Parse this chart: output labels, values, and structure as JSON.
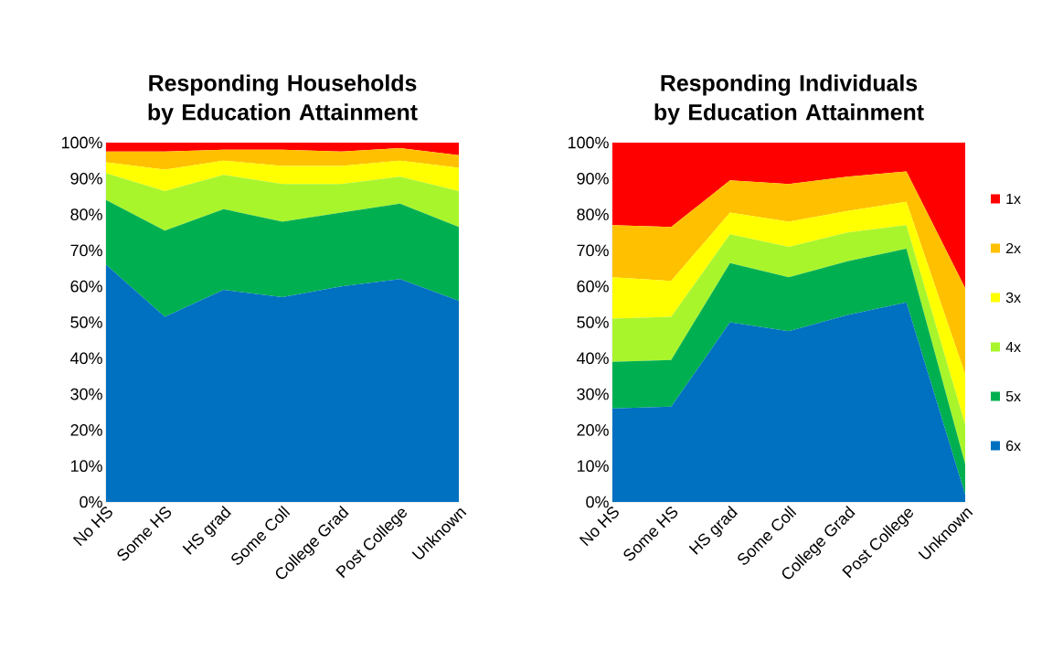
{
  "chart_data": [
    {
      "type": "area",
      "title": "Responding Households by Education Attainment",
      "stacked": true,
      "legend": false,
      "categories": [
        "No HS",
        "Some HS",
        "HS grad",
        "Some Coll",
        "College Grad",
        "Post College",
        "Unknown"
      ],
      "ylim": [
        0,
        100
      ],
      "yticks": [
        {
          "value": 0,
          "label": "0%"
        },
        {
          "value": 10,
          "label": "10%"
        },
        {
          "value": 20,
          "label": "20%"
        },
        {
          "value": 30,
          "label": "30%"
        },
        {
          "value": 40,
          "label": "40%"
        },
        {
          "value": 50,
          "label": "50%"
        },
        {
          "value": 60,
          "label": "60%"
        },
        {
          "value": 70,
          "label": "70%"
        },
        {
          "value": 80,
          "label": "80%"
        },
        {
          "value": 90,
          "label": "90%"
        },
        {
          "value": 100,
          "label": "100%"
        }
      ],
      "series": [
        {
          "color": "#0070c0",
          "values": [
            66,
            51.5,
            59,
            57,
            60,
            62,
            56
          ]
        },
        {
          "color": "#00b050",
          "values": [
            18,
            24,
            22.5,
            21,
            20.5,
            21,
            20.5
          ]
        },
        {
          "color": "#a9f52c",
          "values": [
            7.5,
            11,
            9.5,
            10.5,
            8,
            7.5,
            10
          ]
        },
        {
          "color": "#ffff00",
          "values": [
            3,
            6,
            4,
            5,
            5,
            4.5,
            6.5
          ]
        },
        {
          "color": "#ffc000",
          "values": [
            3,
            5,
            3,
            4.5,
            4,
            3.5,
            3.5
          ]
        },
        {
          "color": "#ff0000",
          "values": [
            2.5,
            2.5,
            2,
            2,
            2.5,
            1.5,
            3.5
          ]
        }
      ]
    },
    {
      "type": "area",
      "title": "Responding Individuals by Education Attainment",
      "stacked": true,
      "legend": "right",
      "categories": [
        "No HS",
        "Some HS",
        "HS grad",
        "Some Coll",
        "College Grad",
        "Post College",
        "Unknown"
      ],
      "ylim": [
        0,
        100
      ],
      "yticks": [
        {
          "value": 0,
          "label": "0%"
        },
        {
          "value": 10,
          "label": "10%"
        },
        {
          "value": 20,
          "label": "20%"
        },
        {
          "value": 30,
          "label": "30%"
        },
        {
          "value": 40,
          "label": "40%"
        },
        {
          "value": 50,
          "label": "50%"
        },
        {
          "value": 60,
          "label": "60%"
        },
        {
          "value": 70,
          "label": "70%"
        },
        {
          "value": 80,
          "label": "80%"
        },
        {
          "value": 90,
          "label": "90%"
        },
        {
          "value": 100,
          "label": "100%"
        }
      ],
      "series": [
        {
          "name": "6x",
          "color": "#0070c0",
          "values": [
            26,
            26.5,
            50,
            47.5,
            52,
            55.5,
            2
          ]
        },
        {
          "name": "5x",
          "color": "#00b050",
          "values": [
            13,
            13,
            16.5,
            15,
            15,
            15,
            8.5
          ]
        },
        {
          "name": "4x",
          "color": "#a9f52c",
          "values": [
            12,
            12,
            8,
            8.5,
            8,
            6.5,
            11
          ]
        },
        {
          "name": "3x",
          "color": "#ffff00",
          "values": [
            11.5,
            10,
            6,
            7,
            6,
            6.5,
            14
          ]
        },
        {
          "name": "2x",
          "color": "#ffc000",
          "values": [
            14.5,
            15,
            9,
            10.5,
            9.5,
            8.5,
            24
          ]
        },
        {
          "name": "1x",
          "color": "#ff0000",
          "values": [
            23,
            23.5,
            10.5,
            11.5,
            9.5,
            8,
            40.5
          ]
        }
      ]
    }
  ]
}
